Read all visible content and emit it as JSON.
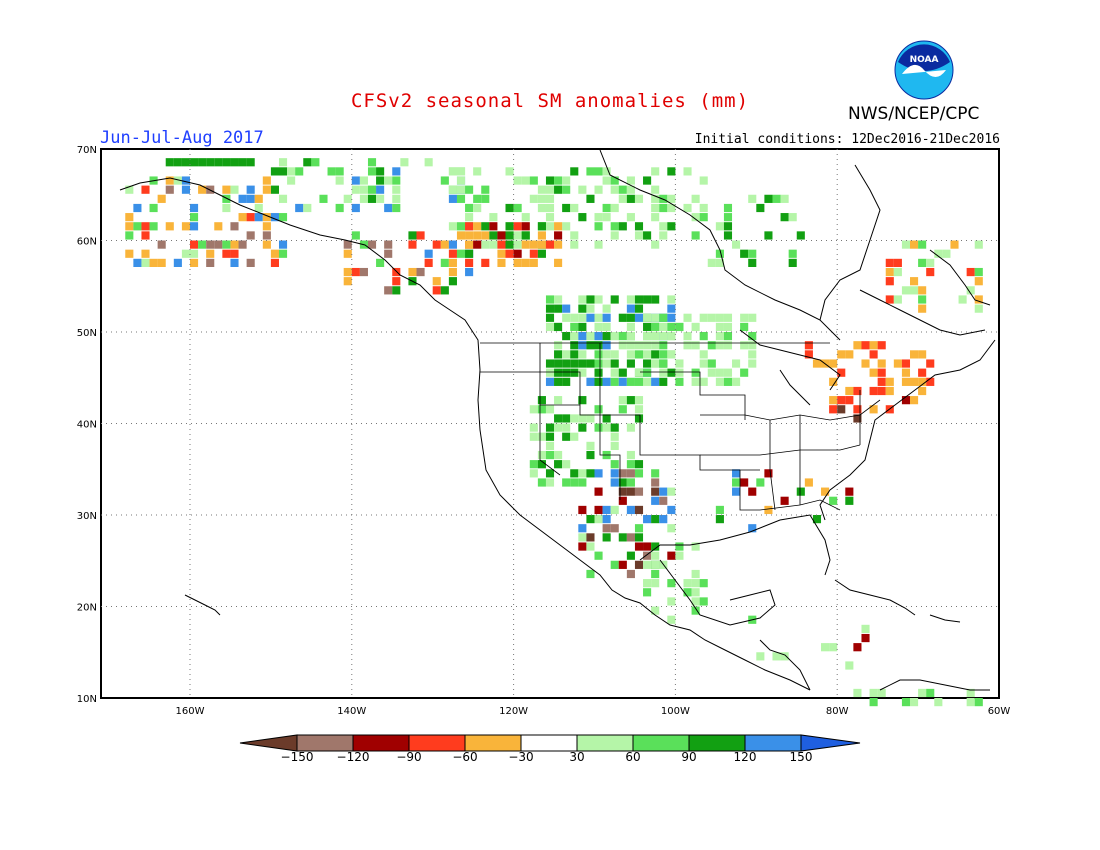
{
  "title": "CFSv2 seasonal SM anomalies (mm)",
  "period": "Jun-Jul-Aug 2017",
  "initial_conditions": "Initial conditions: 12Dec2016-21Dec2016",
  "agency": "NWS/NCEP/CPC",
  "logo_text": "NOAA",
  "axes": {
    "lat_ticks": [
      "70N",
      "60N",
      "50N",
      "40N",
      "30N",
      "20N",
      "10N"
    ],
    "lon_ticks": [
      "160W",
      "140W",
      "120W",
      "100W",
      "80W",
      "60W"
    ]
  },
  "colorbar": {
    "labels": [
      "-150",
      "-120",
      "-90",
      "-60",
      "-30",
      "30",
      "60",
      "90",
      "120",
      "150"
    ],
    "colors": [
      "#6b3b2a",
      "#a0776b",
      "#a00000",
      "#ff3c1e",
      "#f9b43a",
      "#ffffff",
      "#b5f5a8",
      "#5ae05a",
      "#12a012",
      "#3a90e8",
      "#1f5fe0"
    ]
  },
  "map_extent": {
    "lon": [
      -171,
      -60
    ],
    "lat": [
      10,
      70
    ]
  }
}
